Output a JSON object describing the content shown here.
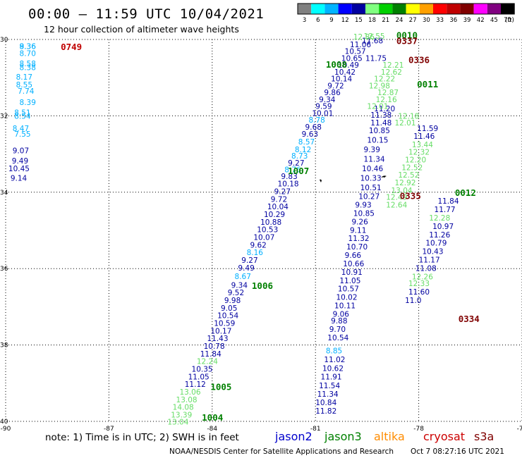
{
  "header": {
    "title": "00:00 – 11:59 UTC 10/04/2021",
    "subtitle": "12 hour collection of altimeter wave heights"
  },
  "color_scale": {
    "colors": [
      "#808080",
      "#00ffff",
      "#00b4ff",
      "#0000ff",
      "#0000a0",
      "#80ff80",
      "#00d000",
      "#008000",
      "#ffff00",
      "#ffa000",
      "#ff0000",
      "#c00000",
      "#800000",
      "#ff00ff",
      "#800080",
      "#000000"
    ],
    "labels": [
      "3",
      "6",
      "9",
      "12",
      "15",
      "18",
      "21",
      "24",
      "27",
      "30",
      "33",
      "36",
      "39",
      "42",
      "45",
      "70"
    ],
    "unit": "(ft)"
  },
  "axes": {
    "x_ticks": [
      "-90",
      "-87",
      "-84",
      "-81",
      "-78",
      "-75"
    ],
    "y_ticks": [
      "30",
      "32",
      "34",
      "36",
      "38",
      "40"
    ],
    "x_range": [
      -90,
      -75
    ],
    "y_range": [
      30,
      40
    ]
  },
  "tracks": [
    {
      "name": "jason2",
      "color": "#0000a0",
      "points": [
        {
          "v": "11.68",
          "lon": -79.65,
          "lat": 30.1
        },
        {
          "v": "11.06",
          "lon": -80.0,
          "lat": 30.2
        },
        {
          "v": "10.57",
          "lon": -80.15,
          "lat": 30.38
        },
        {
          "v": "10.65",
          "lon": -80.25,
          "lat": 30.56
        },
        {
          "v": "10.49",
          "lon": -80.35,
          "lat": 30.74
        },
        {
          "v": "10.42",
          "lon": -80.45,
          "lat": 30.92
        },
        {
          "v": "10.14",
          "lon": -80.55,
          "lat": 31.1
        },
        {
          "v": "9.72",
          "lon": -80.65,
          "lat": 31.28
        },
        {
          "v": "9.86",
          "lon": -80.75,
          "lat": 31.46
        },
        {
          "v": "9.34",
          "lon": -80.9,
          "lat": 31.64
        },
        {
          "v": "9.59",
          "lon": -81.0,
          "lat": 31.82
        },
        {
          "v": "10.01",
          "lon": -81.1,
          "lat": 32.0
        },
        {
          "v": "9.68",
          "lon": -81.3,
          "lat": 32.36
        },
        {
          "v": "9.63",
          "lon": -81.4,
          "lat": 32.55
        },
        {
          "v": "9.27",
          "lon": -81.8,
          "lat": 33.3
        },
        {
          "v": "9.83",
          "lon": -82.0,
          "lat": 33.65
        },
        {
          "v": "10.18",
          "lon": -82.1,
          "lat": 33.85
        },
        {
          "v": "9.27",
          "lon": -82.2,
          "lat": 34.05
        },
        {
          "v": "9.72",
          "lon": -82.3,
          "lat": 34.25
        },
        {
          "v": "10.04",
          "lon": -82.4,
          "lat": 34.45
        },
        {
          "v": "10.29",
          "lon": -82.5,
          "lat": 34.65
        },
        {
          "v": "10.88",
          "lon": -82.6,
          "lat": 34.85
        },
        {
          "v": "10.53",
          "lon": -82.7,
          "lat": 35.05
        },
        {
          "v": "10.07",
          "lon": -82.8,
          "lat": 35.25
        },
        {
          "v": "9.62",
          "lon": -82.9,
          "lat": 35.45
        },
        {
          "v": "9.27",
          "lon": -83.15,
          "lat": 35.85
        },
        {
          "v": "9.49",
          "lon": -83.25,
          "lat": 36.05
        },
        {
          "v": "9.34",
          "lon": -83.45,
          "lat": 36.5
        },
        {
          "v": "9.52",
          "lon": -83.55,
          "lat": 36.7
        },
        {
          "v": "9.98",
          "lon": -83.65,
          "lat": 36.9
        },
        {
          "v": "9.05",
          "lon": -83.75,
          "lat": 37.1
        },
        {
          "v": "10.54",
          "lon": -83.85,
          "lat": 37.3
        },
        {
          "v": "10.59",
          "lon": -83.95,
          "lat": 37.5
        },
        {
          "v": "10.17",
          "lon": -84.05,
          "lat": 37.7
        },
        {
          "v": "11.43",
          "lon": -84.15,
          "lat": 37.9
        },
        {
          "v": "10.78",
          "lon": -84.25,
          "lat": 38.1
        },
        {
          "v": "11.84",
          "lon": -84.35,
          "lat": 38.3
        },
        {
          "v": "10.35",
          "lon": -84.6,
          "lat": 38.7
        },
        {
          "v": "11.05",
          "lon": -84.7,
          "lat": 38.9
        },
        {
          "v": "11.12",
          "lon": -84.8,
          "lat": 39.1
        },
        {
          "v": "11.75",
          "lon": -79.55,
          "lat": 30.56
        },
        {
          "v": "11.20",
          "lon": -79.3,
          "lat": 31.88
        },
        {
          "v": "11.38",
          "lon": -79.4,
          "lat": 32.05
        },
        {
          "v": "11.48",
          "lon": -79.4,
          "lat": 32.25
        },
        {
          "v": "10.85",
          "lon": -79.45,
          "lat": 32.45
        },
        {
          "v": "10.15",
          "lon": -79.5,
          "lat": 32.7
        },
        {
          "v": "9.39",
          "lon": -79.6,
          "lat": 32.95
        },
        {
          "v": "11.34",
          "lon": -79.6,
          "lat": 33.2
        },
        {
          "v": "10.46",
          "lon": -79.65,
          "lat": 33.45
        },
        {
          "v": "10.33",
          "lon": -79.7,
          "lat": 33.7
        },
        {
          "v": "10.51",
          "lon": -79.7,
          "lat": 33.95
        },
        {
          "v": "10.27",
          "lon": -79.75,
          "lat": 34.18
        },
        {
          "v": "9.93",
          "lon": -79.85,
          "lat": 34.4
        },
        {
          "v": "10.85",
          "lon": -79.9,
          "lat": 34.62
        },
        {
          "v": "9.26",
          "lon": -79.95,
          "lat": 34.84
        },
        {
          "v": "9.11",
          "lon": -80.0,
          "lat": 35.06
        },
        {
          "v": "11.32",
          "lon": -80.05,
          "lat": 35.28
        },
        {
          "v": "10.70",
          "lon": -80.1,
          "lat": 35.5
        },
        {
          "v": "9.66",
          "lon": -80.15,
          "lat": 35.72
        },
        {
          "v": "10.66",
          "lon": -80.2,
          "lat": 35.94
        },
        {
          "v": "10.91",
          "lon": -80.25,
          "lat": 36.16
        },
        {
          "v": "11.05",
          "lon": -80.3,
          "lat": 36.38
        },
        {
          "v": "10.57",
          "lon": -80.35,
          "lat": 36.6
        },
        {
          "v": "10.02",
          "lon": -80.4,
          "lat": 36.82
        },
        {
          "v": "10.11",
          "lon": -80.45,
          "lat": 37.04
        },
        {
          "v": "9.06",
          "lon": -80.5,
          "lat": 37.26
        },
        {
          "v": "9.88",
          "lon": -80.55,
          "lat": 37.44
        },
        {
          "v": "9.70",
          "lon": -80.6,
          "lat": 37.66
        },
        {
          "v": "10.54",
          "lon": -80.65,
          "lat": 37.88
        },
        {
          "v": "11.02",
          "lon": -80.75,
          "lat": 38.45
        },
        {
          "v": "10.62",
          "lon": -80.8,
          "lat": 38.68
        },
        {
          "v": "11.91",
          "lon": -80.85,
          "lat": 38.9
        },
        {
          "v": "11.54",
          "lon": -80.9,
          "lat": 39.13
        },
        {
          "v": "11.34",
          "lon": -80.95,
          "lat": 39.35
        },
        {
          "v": "10.84",
          "lon": -81.0,
          "lat": 39.58
        },
        {
          "v": "11.82",
          "lon": -81.0,
          "lat": 39.8
        },
        {
          "v": "11.59",
          "lon": -78.05,
          "lat": 32.4
        },
        {
          "v": "11.46",
          "lon": -78.15,
          "lat": 32.6
        },
        {
          "v": "11.84",
          "lon": -77.45,
          "lat": 34.3
        },
        {
          "v": "11.77",
          "lon": -77.55,
          "lat": 34.52
        },
        {
          "v": "10.97",
          "lon": -77.6,
          "lat": 34.96
        },
        {
          "v": "11.26",
          "lon": -77.7,
          "lat": 35.18
        },
        {
          "v": "10.79",
          "lon": -77.8,
          "lat": 35.4
        },
        {
          "v": "10.43",
          "lon": -77.9,
          "lat": 35.62
        },
        {
          "v": "11.17",
          "lon": -78.0,
          "lat": 35.84
        },
        {
          "v": "11.08",
          "lon": -78.1,
          "lat": 36.06
        },
        {
          "v": "11.60",
          "lon": -78.3,
          "lat": 36.68
        },
        {
          "v": "11.0",
          "lon": -78.4,
          "lat": 36.9
        },
        {
          "v": "9.07",
          "lon": -89.8,
          "lat": 32.98
        },
        {
          "v": "9.49",
          "lon": -89.82,
          "lat": 33.25
        },
        {
          "v": "10.45",
          "lon": -89.92,
          "lat": 33.45
        },
        {
          "v": "9.14",
          "lon": -89.86,
          "lat": 33.7
        }
      ]
    },
    {
      "name": "jason3",
      "color": "#66dd66",
      "points": [
        {
          "v": "12.86",
          "lon": -79.9,
          "lat": 30.0
        },
        {
          "v": "12.55",
          "lon": -79.6,
          "lat": 29.98
        },
        {
          "v": "12.21",
          "lon": -79.05,
          "lat": 30.74
        },
        {
          "v": "12.62",
          "lon": -79.1,
          "lat": 30.92
        },
        {
          "v": "12.22",
          "lon": -79.3,
          "lat": 31.1
        },
        {
          "v": "12.98",
          "lon": -79.45,
          "lat": 31.28
        },
        {
          "v": "12.87",
          "lon": -79.2,
          "lat": 31.46
        },
        {
          "v": "12.16",
          "lon": -79.25,
          "lat": 31.64
        },
        {
          "v": "12.01",
          "lon": -79.5,
          "lat": 31.82
        },
        {
          "v": "12.18",
          "lon": -78.6,
          "lat": 32.08
        },
        {
          "v": "12.01",
          "lon": -78.7,
          "lat": 32.25
        },
        {
          "v": "13.44",
          "lon": -78.2,
          "lat": 32.82
        },
        {
          "v": "12.32",
          "lon": -78.3,
          "lat": 33.02
        },
        {
          "v": "12.20",
          "lon": -78.4,
          "lat": 33.22
        },
        {
          "v": "12.52",
          "lon": -78.5,
          "lat": 33.42
        },
        {
          "v": "12.52",
          "lon": -78.6,
          "lat": 33.62
        },
        {
          "v": "12.92",
          "lon": -78.7,
          "lat": 33.82
        },
        {
          "v": "13.04",
          "lon": -78.8,
          "lat": 34.02
        },
        {
          "v": "12.49",
          "lon": -78.95,
          "lat": 34.2
        },
        {
          "v": "12.64",
          "lon": -78.95,
          "lat": 34.4
        },
        {
          "v": "12.28",
          "lon": -77.7,
          "lat": 34.74
        },
        {
          "v": "12.26",
          "lon": -78.2,
          "lat": 36.28
        },
        {
          "v": "12.33",
          "lon": -78.3,
          "lat": 36.46
        },
        {
          "v": "12.24",
          "lon": -84.45,
          "lat": 38.5
        },
        {
          "v": "13.06",
          "lon": -84.95,
          "lat": 39.3
        },
        {
          "v": "13.08",
          "lon": -85.05,
          "lat": 39.5
        },
        {
          "v": "14.08",
          "lon": -85.15,
          "lat": 39.7
        },
        {
          "v": "13.39",
          "lon": -85.2,
          "lat": 39.9
        },
        {
          "v": "13.04",
          "lon": -85.3,
          "lat": 40.08
        }
      ]
    },
    {
      "name": "jason-mid",
      "color": "#00b0ff",
      "points": [
        {
          "v": "8.78",
          "lon": -81.2,
          "lat": 32.18
        },
        {
          "v": "8.57",
          "lon": -81.5,
          "lat": 32.75
        },
        {
          "v": "8.12",
          "lon": -81.6,
          "lat": 32.95
        },
        {
          "v": "8.73",
          "lon": -81.7,
          "lat": 33.12
        },
        {
          "v": "8.76",
          "lon": -81.9,
          "lat": 33.48
        },
        {
          "v": "8.16",
          "lon": -83.0,
          "lat": 35.65
        },
        {
          "v": "8.67",
          "lon": -83.35,
          "lat": 36.27
        },
        {
          "v": "8.85",
          "lon": -80.7,
          "lat": 38.22
        },
        {
          "v": "8.36",
          "lon": -89.6,
          "lat": 30.25
        },
        {
          "v": "8.70",
          "lon": -89.6,
          "lat": 30.43
        },
        {
          "v": "8.58",
          "lon": -89.6,
          "lat": 30.7
        },
        {
          "v": "8.38",
          "lon": -89.6,
          "lat": 30.8
        },
        {
          "v": "8.17",
          "lon": -89.7,
          "lat": 31.05
        },
        {
          "v": "8.55",
          "lon": -89.7,
          "lat": 31.25
        },
        {
          "v": "7.74",
          "lon": -89.65,
          "lat": 31.42
        },
        {
          "v": "8.39",
          "lon": -89.6,
          "lat": 31.72
        },
        {
          "v": "8.51",
          "lon": -89.75,
          "lat": 31.98
        },
        {
          "v": "8.54",
          "lon": -89.75,
          "lat": 32.08
        },
        {
          "v": "8.47",
          "lon": -89.8,
          "lat": 32.4
        },
        {
          "v": "7.55",
          "lon": -89.75,
          "lat": 32.55
        },
        {
          "v": "9.36",
          "lon": -89.6,
          "lat": 30.25
        }
      ]
    }
  ],
  "time_labels": [
    {
      "t": "0010",
      "lon": -78.65,
      "lat": 29.97,
      "color": "#008000"
    },
    {
      "t": "0337",
      "lon": -78.65,
      "lat": 30.12,
      "color": "#800000"
    },
    {
      "t": "0336",
      "lon": -78.3,
      "lat": 30.62,
      "color": "#800000"
    },
    {
      "t": "1008",
      "lon": -80.7,
      "lat": 30.74,
      "color": "#008000"
    },
    {
      "t": "0011",
      "lon": -78.05,
      "lat": 31.25,
      "color": "#008000"
    },
    {
      "t": "0749",
      "lon": -88.4,
      "lat": 30.28,
      "color": "#c00000"
    },
    {
      "t": "1007",
      "lon": -81.8,
      "lat": 33.52,
      "color": "#008000"
    },
    {
      "t": "0335",
      "lon": -78.55,
      "lat": 34.18,
      "color": "#800000"
    },
    {
      "t": "0012",
      "lon": -76.95,
      "lat": 34.1,
      "color": "#008000"
    },
    {
      "t": "1006",
      "lon": -82.85,
      "lat": 36.53,
      "color": "#008000"
    },
    {
      "t": "0334",
      "lon": -76.85,
      "lat": 37.4,
      "color": "#800000"
    },
    {
      "t": "1005",
      "lon": -84.05,
      "lat": 39.18,
      "color": "#008000"
    },
    {
      "t": "1004",
      "lon": -84.3,
      "lat": 39.98,
      "color": "#008000"
    }
  ],
  "footer": {
    "note": "note: 1) Time is in UTC; 2) SWH is in feet",
    "satellites": [
      {
        "name": "jason2",
        "color": "#0000cc"
      },
      {
        "name": "jason3",
        "color": "#008000"
      },
      {
        "name": "altika",
        "color": "#ff8c00"
      },
      {
        "name": "cryosat",
        "color": "#cc0000"
      },
      {
        "name": "s3a",
        "color": "#800000"
      }
    ],
    "credit": "NOAA/NESDIS Center for Satellite Applications and Research",
    "timestamp": "Oct  7 08:27:16 UTC 2021"
  }
}
